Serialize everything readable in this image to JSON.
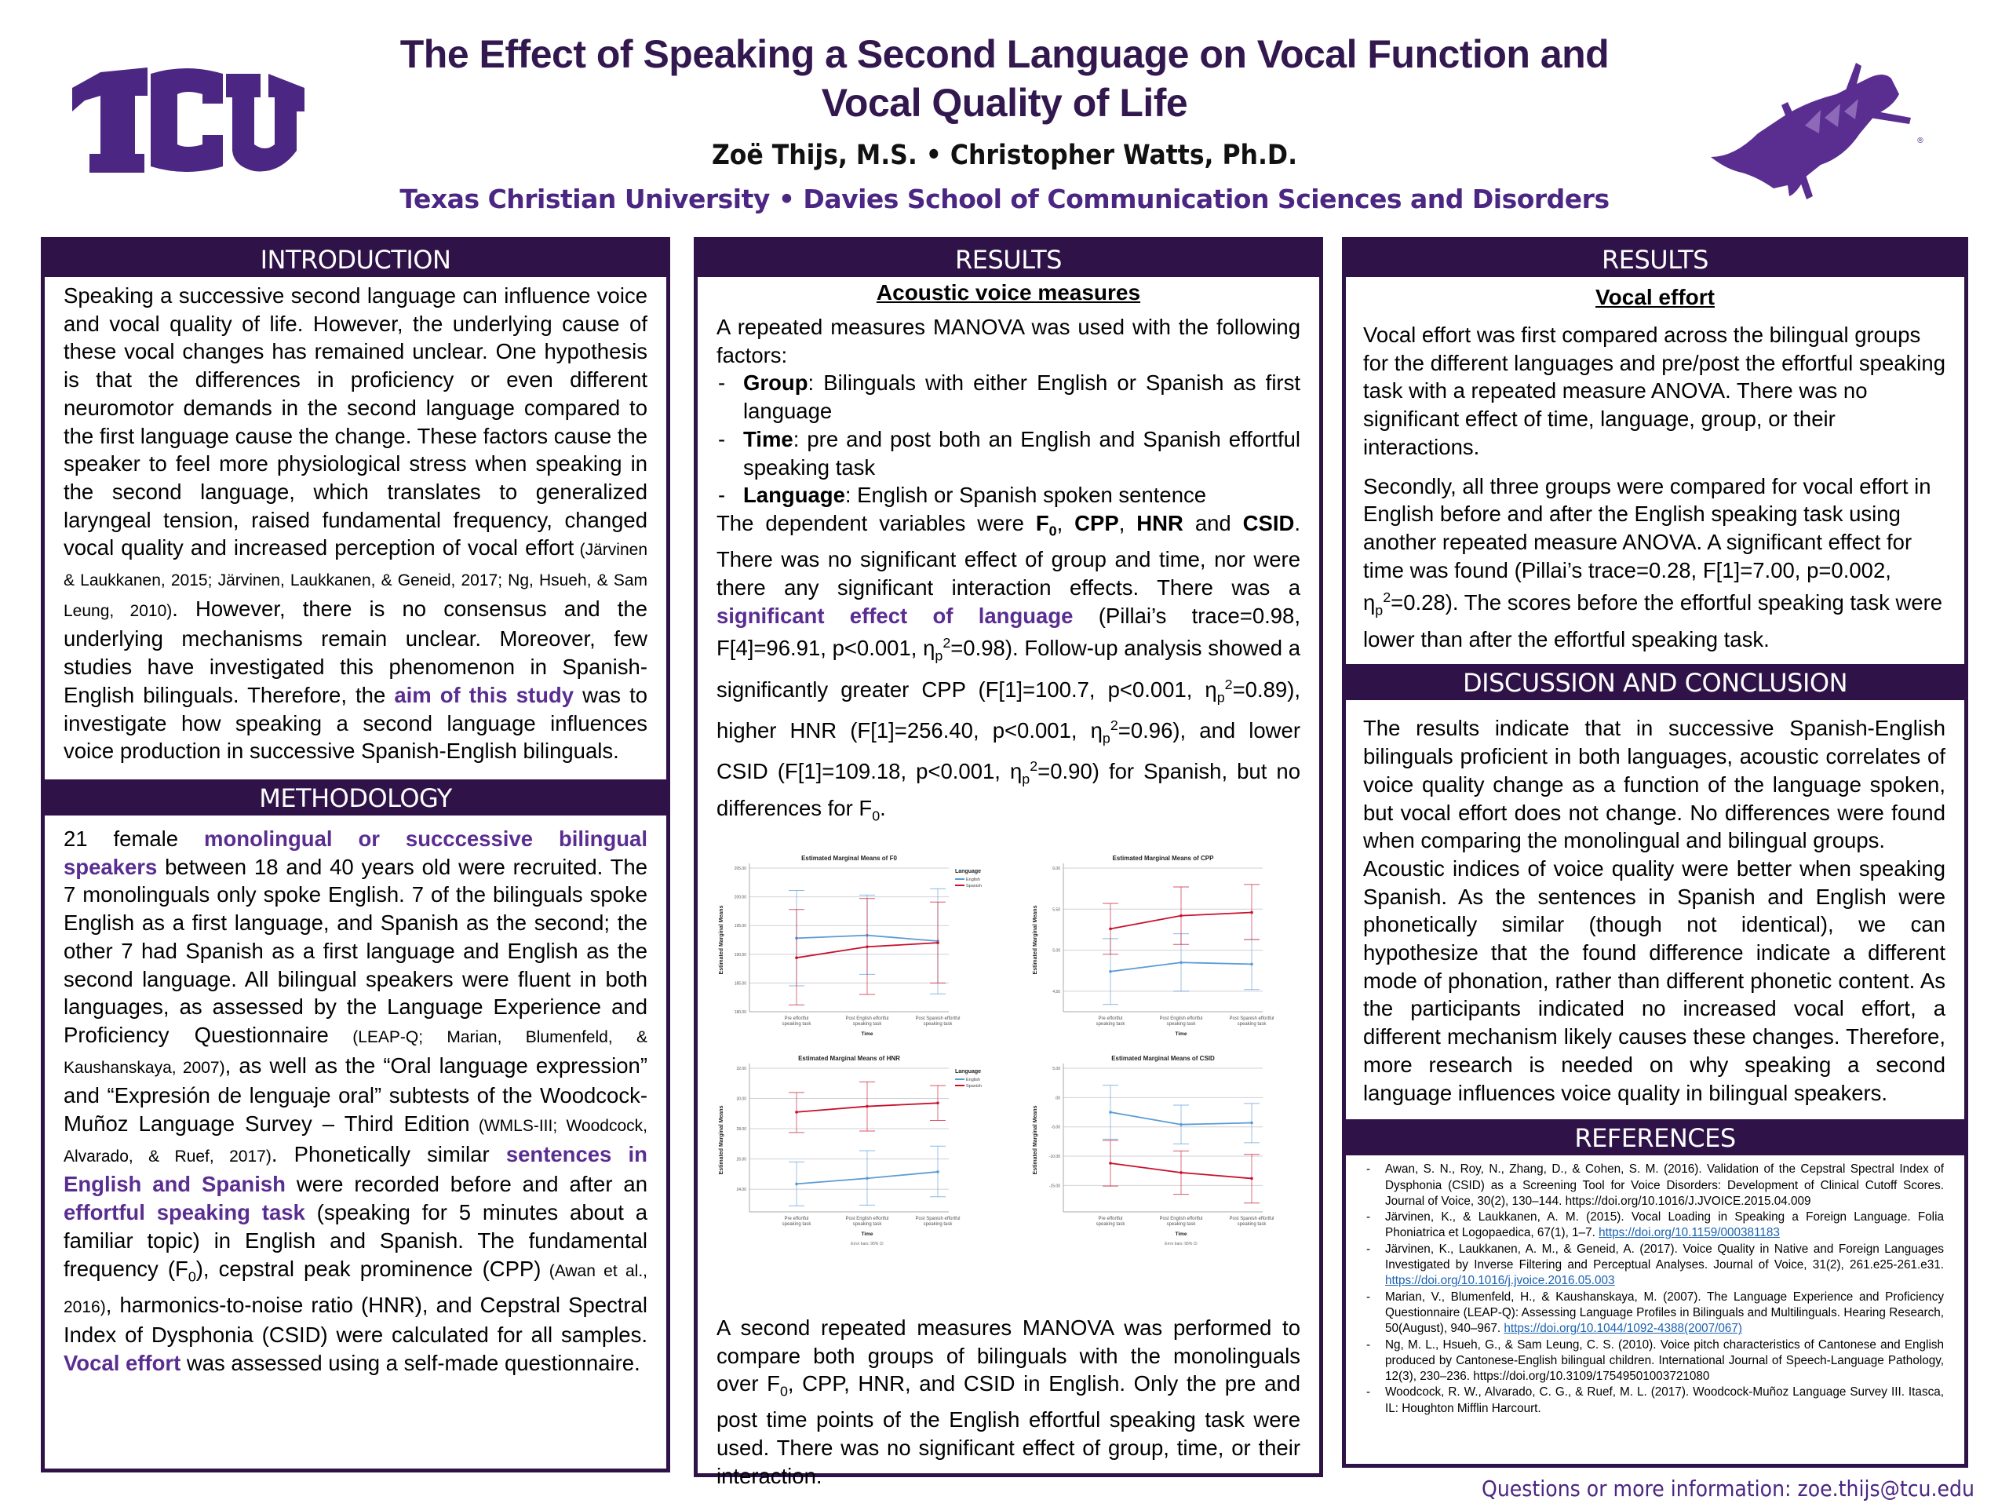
{
  "header": {
    "title_line1": "The Effect of Speaking a Second Language on Vocal Function and",
    "title_line2": "Vocal Quality of Life",
    "authors": "Zoë Thijs, M.S. • Christopher Watts, Ph.D.",
    "affiliation": "Texas Christian University • Davies School of Communication Sciences and Disorders",
    "logo_text": "TCU"
  },
  "colors": {
    "brand_purple": "#4b2683",
    "header_bar": "#2e1248",
    "english_series": "#5b9bd5",
    "spanish_series": "#c8102e"
  },
  "introduction": {
    "heading": "INTRODUCTION",
    "p1": "Speaking a successive second language can influence voice and vocal quality of life. However, the underlying cause of these vocal changes has remained unclear. One hypothesis is that the differences in proficiency or even different neuromotor demands in the second language compared to the first language cause the change. These factors cause the speaker to feel more physiological stress when speaking in the second language, which translates to generalized laryngeal tension, raised fundamental frequency, changed vocal quality and increased perception of vocal effort",
    "cite1": " (Järvinen & Laukkanen, 2015; Järvinen, Laukkanen, & Geneid, 2017; Ng, Hsueh, & Sam Leung, 2010)",
    "p2": ". However, there is no consensus and the underlying mechanisms remain unclear. Moreover, few studies have investigated this phenomenon in Spanish-English bilinguals. Therefore, the ",
    "aim": "aim of this study",
    "p3": " was to investigate how speaking a second language influences voice production in successive Spanish-English bilinguals."
  },
  "methodology": {
    "heading": "METHODOLOGY",
    "t1": "21 female ",
    "h1": "monolingual or succcessive bilingual speakers",
    "t2": " between 18 and 40 years old were recruited. The 7 monolinguals only spoke English. 7 of the bilinguals spoke English as a first language, and Spanish as the second; the other 7 had Spanish as a first language and English as the second language. All bilingual speakers were fluent in both languages, as assessed by the Language Experience and Proficiency Questionnaire",
    "c1": " (LEAP-Q; Marian, Blumenfeld, & Kaushanskaya, 2007)",
    "t3": ", as well as the “Oral language expression” and “Expresión de lenguaje oral” subtests of the Woodcock-Muñoz Language Survey – Third Edition",
    "c2": " (WMLS-III; Woodcock, Alvarado, & Ruef, 2017)",
    "t4": ". Phonetically similar ",
    "h2": "sentences in English and Spanish",
    "t5": " were recorded before and after an ",
    "h3": "effortful speaking task",
    "t6": " (speaking for 5 minutes about a familiar topic) in English and Spanish. The fundamental frequency (F",
    "t6sub": "0",
    "t7": "), cepstral peak prominence (CPP)",
    "c3": " (Awan et al., 2016)",
    "t8": ", harmonics-to-noise ratio (HNR), and Cepstral Spectral Index of Dysphonia (CSID) were calculated for all samples. ",
    "h4": "Vocal effort",
    "t9": " was assessed using a self-made questionnaire."
  },
  "results_acoustic": {
    "heading": "RESULTS",
    "subheading": "Acoustic voice measures",
    "intro": "A repeated measures MANOVA was used with the following factors:",
    "factors": [
      {
        "name": "Group",
        "desc": ": Bilinguals with either English or Spanish as first language"
      },
      {
        "name": "Time",
        "desc": ": pre and post both an English and Spanish effortful speaking task"
      },
      {
        "name": "Language",
        "desc": ": English or Spanish spoken sentence"
      }
    ],
    "dv_prefix": "The dependent variables were ",
    "dv": [
      "F",
      "CPP",
      "HNR",
      "CSID"
    ],
    "no_effect": "There was no significant effect of group and time, nor were there any significant interaction effects. There was a ",
    "sig": "significant effect of language",
    "stats1": " (Pillai’s trace=0.98, F[4]=96.91, p<0.001, η",
    "stats1b": "=0.98). Follow-up analysis showed a significantly greater CPP (F[1]=100.7, p<0.001, η",
    "stats2": "=0.89), higher HNR (F[1]=256.40, p<0.001, η",
    "stats3": "=0.96), and lower CSID (F[1]=109.18, p<0.001, η",
    "stats4": "=0.90) for Spanish, but no differences for F",
    "second_manova_1": "A second repeated measures MANOVA was performed to compare both groups of bilinguals with the monolinguals over F",
    "second_manova_2": ", CPP, HNR, and CSID in English. Only the pre and post time points of the English effortful speaking task were used. There was no significant effect of group, time, or their interaction."
  },
  "chart_data": [
    {
      "type": "line",
      "title": "Estimated Marginal Means of F0",
      "xlabel": "Time",
      "ylabel": "Estimated Marginal Means",
      "categories": [
        "Pre effortful speaking task",
        "Post English effortful speaking task",
        "Post Spanish effortful speaking task"
      ],
      "ylim": [
        180,
        205
      ],
      "yticks": [
        "180.00",
        "185.00",
        "190.00",
        "195.00",
        "200.00",
        "205.00"
      ],
      "legend_title": "Language",
      "series": [
        {
          "name": "English",
          "values": [
            192.8,
            193.3,
            192.3
          ],
          "ci_low": [
            184.5,
            186.5,
            183.1
          ],
          "ci_high": [
            201.1,
            200.3,
            201.4
          ]
        },
        {
          "name": "Spanish",
          "values": [
            189.4,
            191.3,
            192.0
          ],
          "ci_low": [
            181.2,
            183.0,
            185.0
          ],
          "ci_high": [
            197.8,
            199.7,
            199.1
          ]
        }
      ],
      "grid": true
    },
    {
      "type": "line",
      "title": "Estimated Marginal Means of CPP",
      "xlabel": "Time",
      "ylabel": "Estimated Marginal Means",
      "categories": [
        "Pre effortful speaking task",
        "Post English effortful speaking task",
        "Post Spanish effortful speaking task"
      ],
      "ylim": [
        4.25,
        6.0
      ],
      "yticks": [
        "4.50",
        "5.00",
        "5.50",
        "6.00"
      ],
      "series": [
        {
          "name": "English",
          "values": [
            4.74,
            4.85,
            4.83
          ],
          "ci_low": [
            4.34,
            4.5,
            4.52
          ],
          "ci_high": [
            5.14,
            5.2,
            5.13
          ]
        },
        {
          "name": "Spanish",
          "values": [
            5.26,
            5.42,
            5.46
          ],
          "ci_low": [
            4.95,
            5.07,
            5.13
          ],
          "ci_high": [
            5.57,
            5.77,
            5.8
          ]
        }
      ],
      "grid": true
    },
    {
      "type": "line",
      "title": "Estimated Marginal Means of HNR",
      "xlabel": "Time",
      "ylabel": "Estimated Marginal Means",
      "categories": [
        "Pre effortful speaking task",
        "Post English effortful speaking task",
        "Post Spanish effortful speaking task"
      ],
      "ylim": [
        22.5,
        32
      ],
      "yticks": [
        "24.00",
        "26.00",
        "28.00",
        "30.00",
        "32.00"
      ],
      "legend_title": "Language",
      "series": [
        {
          "name": "English",
          "values": [
            24.35,
            24.72,
            25.15
          ],
          "ci_low": [
            22.9,
            22.95,
            23.5
          ],
          "ci_high": [
            25.8,
            26.55,
            26.85
          ]
        },
        {
          "name": "Spanish",
          "values": [
            29.1,
            29.48,
            29.7
          ],
          "ci_low": [
            27.75,
            27.85,
            28.55
          ],
          "ci_high": [
            30.4,
            31.1,
            30.85
          ]
        }
      ],
      "note": "Error bars: 95% CI",
      "grid": true
    },
    {
      "type": "line",
      "title": "Estimated Marginal Means of CSID",
      "xlabel": "Time",
      "ylabel": "Estimated Marginal Means",
      "categories": [
        "Pre effortful speaking task",
        "Post English effortful speaking task",
        "Post Spanish effortful speaking task"
      ],
      "ylim": [
        -19.5,
        5
      ],
      "yticks": [
        "-15.00",
        "-10.00",
        "-5.00",
        ".00",
        "5.00"
      ],
      "series": [
        {
          "name": "English",
          "values": [
            -2.5,
            -4.6,
            -4.3
          ],
          "ci_low": [
            -7.1,
            -7.9,
            -7.7
          ],
          "ci_high": [
            2.1,
            -1.3,
            -1.0
          ]
        },
        {
          "name": "Spanish",
          "values": [
            -11.2,
            -12.8,
            -13.8
          ],
          "ci_low": [
            -15.1,
            -16.5,
            -18.0
          ],
          "ci_high": [
            -7.3,
            -9.1,
            -9.7
          ]
        }
      ],
      "note": "Error bars: 95% CI",
      "grid": true
    }
  ],
  "charts_ui": {
    "titles": [
      "Estimated Marginal Means of F0",
      "Estimated Marginal Means of CPP",
      "Estimated Marginal Means of HNR",
      "Estimated Marginal Means of CSID"
    ],
    "ylabel": "Estimated Marginal Means",
    "xlabel": "Time",
    "legend_title": "Language",
    "legend_english": "English",
    "legend_spanish": "Spanish",
    "note": "Error bars: 95% CI"
  },
  "results_vocal_effort": {
    "heading": "RESULTS",
    "subheading": "Vocal effort",
    "p1": "Vocal effort was first compared across the bilingual groups for the different languages and pre/post the effortful speaking task with a repeated measure ANOVA. There was no significant effect of time, language, group, or their interactions.",
    "p2a": "Secondly, all three groups were compared for vocal effort in English before and after the English speaking task using another repeated measure ANOVA. A significant effect for time was found (Pillai’s trace=0.28, F[1]=7.00, p=0.002, η",
    "p2b": "=0.28). The scores before the effortful speaking task were lower than after the effortful speaking task."
  },
  "discussion": {
    "heading": "DISCUSSION AND CONCLUSION",
    "p1": "The results indicate that in successive Spanish-English bilinguals proficient in both languages, acoustic correlates of voice quality change as a function of the language spoken, but vocal effort does not change. No differences were found when comparing the monolingual and bilingual groups.",
    "p2": "Acoustic indices of voice quality were better when speaking Spanish. As the sentences in Spanish and English were phonetically similar (though not identical), we can hypothesize that the found difference indicate a different mode of phonation, rather than different phonetic content. As the participants indicated no increased vocal effort, a different mechanism likely causes these changes. Therefore, more research is needed on why speaking a second language influences voice quality in bilingual speakers."
  },
  "references": {
    "heading": "REFERENCES",
    "items": [
      {
        "text": "Awan, S. N., Roy, N., Zhang, D., & Cohen, S. M. (2016). Validation of the Cepstral Spectral Index of Dysphonia (CSID) as a Screening Tool for Voice Disorders: Development of Clinical Cutoff Scores. Journal of Voice, 30(2), 130–144. https://doi.org/10.1016/J.JVOICE.2015.04.009",
        "link": ""
      },
      {
        "text": "Järvinen, K., & Laukkanen, A. M. (2015). Vocal Loading in Speaking a Foreign Language. Folia Phoniatrica et Logopaedica, 67(1), 1–7. ",
        "link": "https://doi.org/10.1159/000381183"
      },
      {
        "text": "Järvinen, K., Laukkanen, A. M., & Geneid, A. (2017). Voice Quality in Native and Foreign Languages Investigated by Inverse Filtering and Perceptual Analyses. Journal of Voice, 31(2), 261.e25-261.e31. ",
        "link": "https://doi.org/10.1016/j.jvoice.2016.05.003"
      },
      {
        "text": "Marian, V., Blumenfeld, H., & Kaushanskaya, M. (2007). The Language Experience and Proficiency Questionnaire (LEAP-Q): Assessing Language Profiles in Bilinguals and Multilinguals. Hearing Research, 50(August), 940–967. ",
        "link": "https://doi.org/10.1044/1092-4388(2007/067)"
      },
      {
        "text": "Ng, M. L., Hsueh, G., & Sam Leung, C. S. (2010). Voice pitch characteristics of Cantonese and English produced by Cantonese-English bilingual children. International Journal of Speech-Language Pathology, 12(3), 230–236. https://doi.org/10.3109/17549501003721080",
        "link": ""
      },
      {
        "text": "Woodcock, R. W., Alvarado, C. G., & Ruef, M. L. (2017). Woodcock-Muñoz Language Survey III. Itasca, IL: Houghton Mifflin Harcourt.",
        "link": ""
      }
    ]
  },
  "footer": {
    "contact": "Questions or more information: zoe.thijs@tcu.edu"
  }
}
